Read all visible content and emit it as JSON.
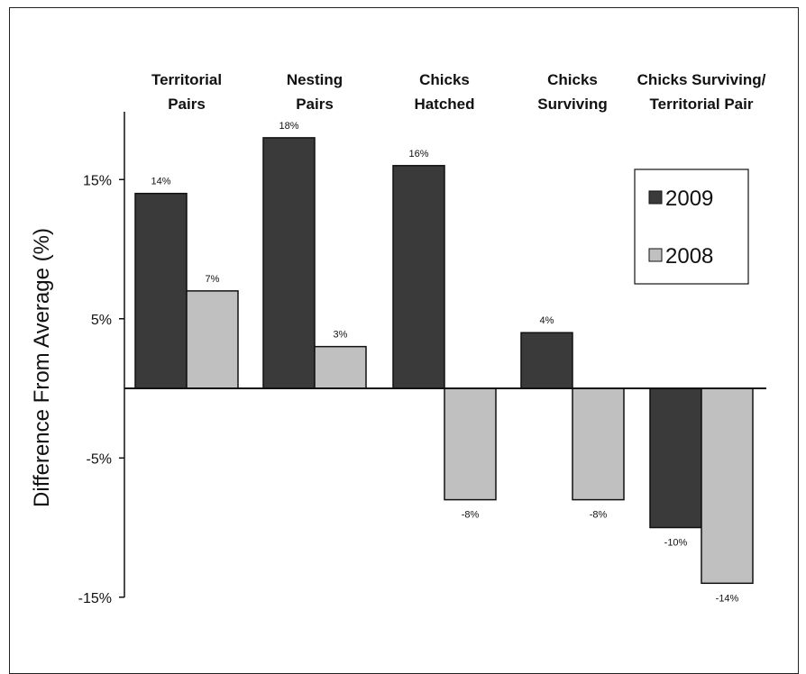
{
  "chart_data": {
    "type": "bar",
    "categories": [
      [
        "Territorial",
        "Pairs"
      ],
      [
        "Nesting",
        "Pairs"
      ],
      [
        "Chicks",
        "Hatched"
      ],
      [
        "Chicks",
        "Surviving"
      ],
      [
        "Chicks Surviving/",
        "Territorial Pair"
      ]
    ],
    "series": [
      {
        "name": "2009",
        "values": [
          14,
          18,
          16,
          4,
          -10
        ],
        "labels": [
          "14%",
          "18%",
          "16%",
          "4%",
          "-10%"
        ],
        "color": "#3a3a3a"
      },
      {
        "name": "2008",
        "values": [
          7,
          3,
          -8,
          -8,
          -14
        ],
        "labels": [
          "7%",
          "3%",
          "-8%",
          "-8%",
          "-14%"
        ],
        "color": "#c0c0c0"
      }
    ],
    "title": "",
    "xlabel": "",
    "ylabel": "Difference From Average (%)",
    "ylim": [
      -15,
      20
    ],
    "yticks": [
      15,
      5,
      -5,
      -15
    ],
    "ytick_labels": [
      "15%",
      "5%",
      "-5%",
      "-15%"
    ],
    "grid": false,
    "legend_position": "top-right"
  }
}
